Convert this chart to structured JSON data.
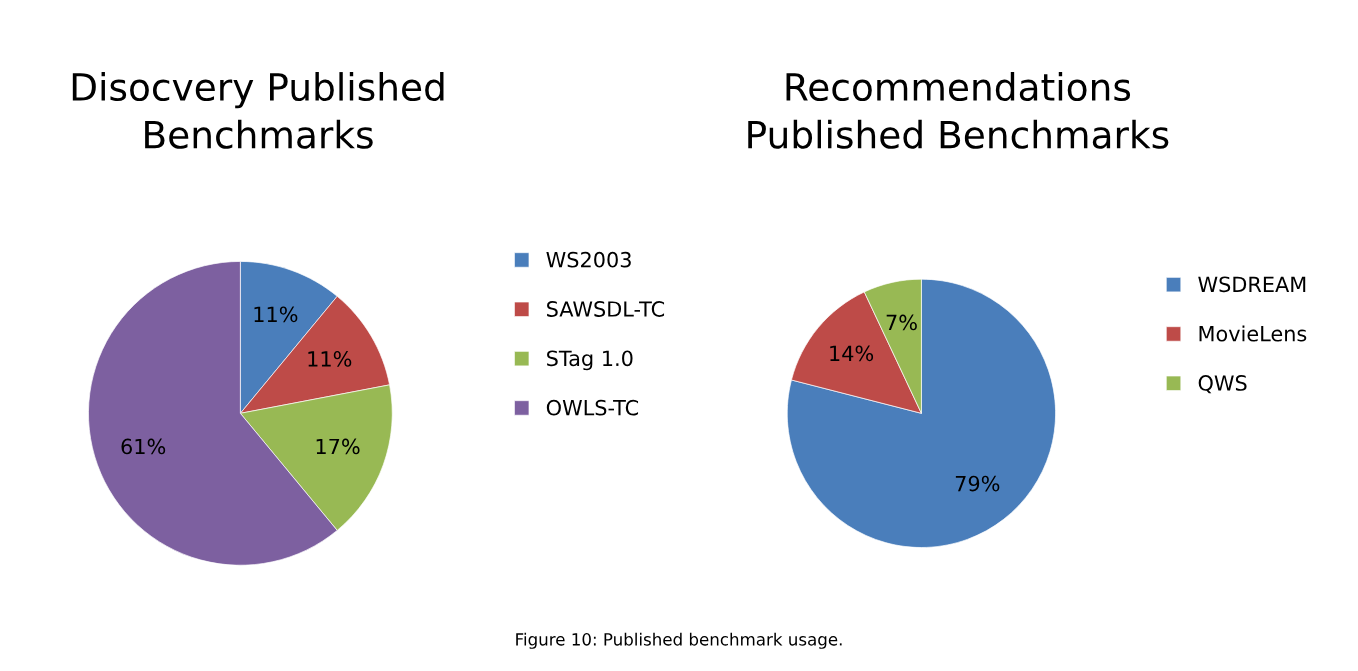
{
  "chart_data": [
    {
      "type": "pie",
      "title": "Disocvery Published\nBenchmarks",
      "categories": [
        "WS2003",
        "SAWSDL-TC",
        "STag 1.0",
        "OWLS-TC"
      ],
      "values": [
        11,
        11,
        17,
        61
      ],
      "colors": [
        "#4a7ebb",
        "#be4b48",
        "#98b954",
        "#7d60a0"
      ],
      "value_labels": [
        "11%",
        "11%",
        "17%",
        "61%"
      ],
      "legend": "right",
      "annotations": [
        "Figure 10: Published benchmark usage."
      ]
    },
    {
      "type": "pie",
      "title": "Recommendations\nPublished Benchmarks",
      "categories": [
        "WSDREAM",
        "MovieLens",
        "QWS"
      ],
      "values": [
        79,
        14,
        7
      ],
      "colors": [
        "#4a7ebb",
        "#be4b48",
        "#98b954"
      ],
      "value_labels": [
        "79%",
        "14%",
        "7%"
      ],
      "legend": "right"
    }
  ]
}
